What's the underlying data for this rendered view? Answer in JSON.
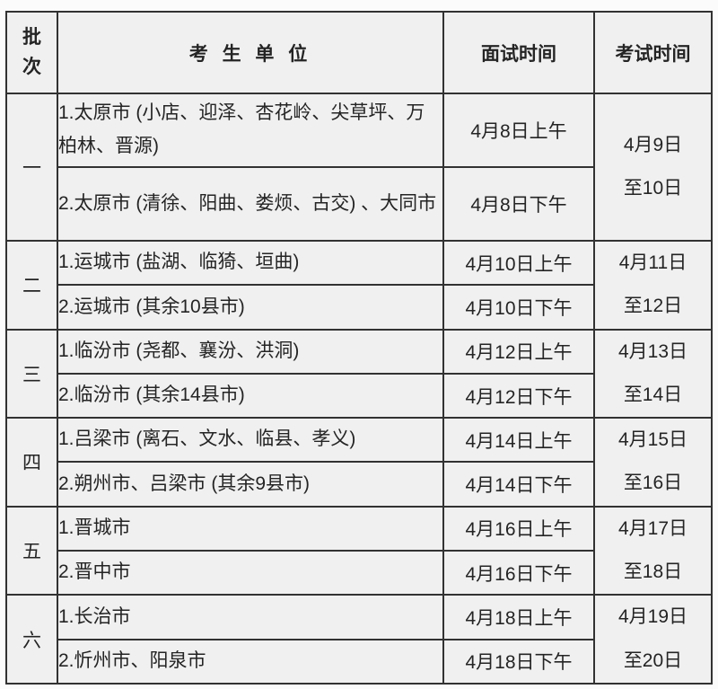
{
  "page": {
    "background_color": "#fbfbfb",
    "cell_background_color": "#f0f0f0",
    "border_color": "#323232",
    "text_color": "#242424"
  },
  "table": {
    "header": {
      "batch": "批\n次",
      "unit": "考 生 单 位",
      "interview": "面试时间",
      "exam": "考试时间"
    },
    "batches": [
      {
        "label": "一",
        "exam_time": "4月9日\n至10日",
        "rows": [
          {
            "unit": "1.太原市 (小店、迎泽、杏花岭、尖草坪、万柏林、晋源)",
            "interview": "4月8日上午"
          },
          {
            "unit": "2.太原市 (清徐、阳曲、娄烦、古交) 、大同市",
            "interview": "4月8日下午"
          }
        ]
      },
      {
        "label": "二",
        "exam_time": "4月11日\n至12日",
        "rows": [
          {
            "unit": "1.运城市 (盐湖、临猗、垣曲)",
            "interview": "4月10日上午"
          },
          {
            "unit": "2.运城市 (其余10县市)",
            "interview": "4月10日下午"
          }
        ]
      },
      {
        "label": "三",
        "exam_time": "4月13日\n至14日",
        "rows": [
          {
            "unit": "1.临汾市 (尧都、襄汾、洪洞)",
            "interview": "4月12日上午"
          },
          {
            "unit": "2.临汾市 (其余14县市)",
            "interview": "4月12日下午"
          }
        ]
      },
      {
        "label": "四",
        "exam_time": "4月15日\n至16日",
        "rows": [
          {
            "unit": "1.吕梁市 (离石、文水、临县、孝义)",
            "interview": "4月14日上午"
          },
          {
            "unit": "2.朔州市、吕梁市 (其余9县市)",
            "interview": "4月14日下午"
          }
        ]
      },
      {
        "label": "五",
        "exam_time": "4月17日\n至18日",
        "rows": [
          {
            "unit": "1.晋城市",
            "interview": "4月16日上午"
          },
          {
            "unit": "2.晋中市",
            "interview": "4月16日下午"
          }
        ]
      },
      {
        "label": "六",
        "exam_time": "4月19日\n至20日",
        "rows": [
          {
            "unit": "1.长治市",
            "interview": "4月18日上午"
          },
          {
            "unit": "2.忻州市、阳泉市",
            "interview": "4月18日下午"
          }
        ]
      }
    ]
  }
}
